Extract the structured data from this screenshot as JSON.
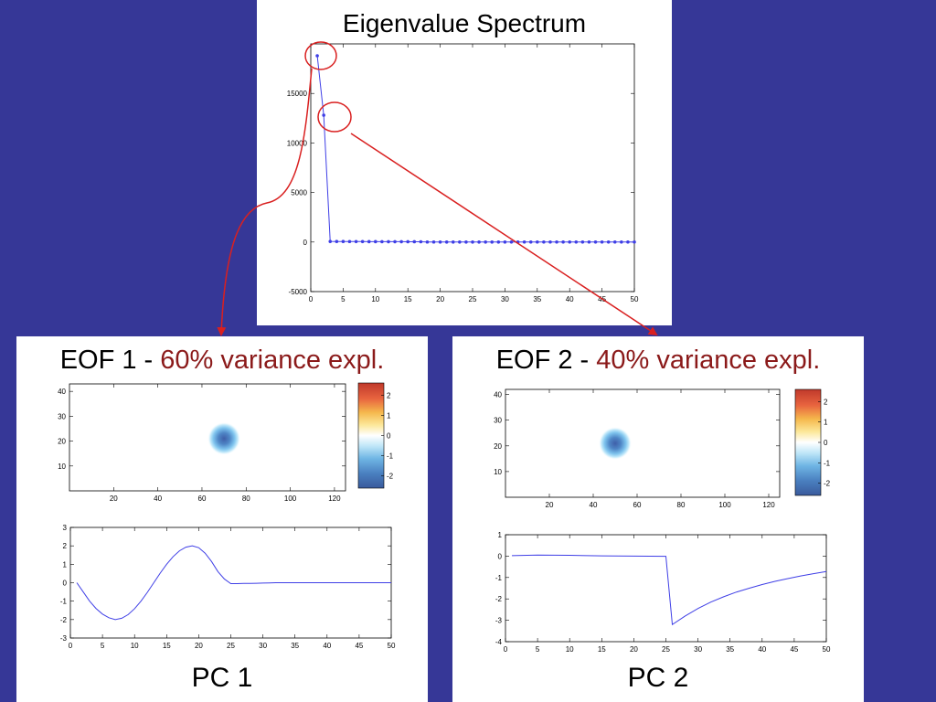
{
  "colors": {
    "background": "#363797",
    "panel": "#ffffff",
    "series_line": "#3f3fe6",
    "highlight_text": "#8b1a1a",
    "annotation": "#d92020"
  },
  "top": {
    "title": "Eigenvalue Spectrum"
  },
  "left": {
    "title_prefix": "EOF 1 - ",
    "title_highlight": "60% variance expl.",
    "caption": "PC 1"
  },
  "right": {
    "title_prefix": "EOF 2 - ",
    "title_highlight": "40% variance expl.",
    "caption": "PC 2"
  },
  "chart_data": [
    {
      "id": "eigen",
      "type": "line",
      "title": "Eigenvalue Spectrum",
      "marker": "dot",
      "xlim": [
        0,
        50
      ],
      "ylim": [
        -5000,
        20000
      ],
      "xticks": [
        0,
        5,
        10,
        15,
        20,
        25,
        30,
        35,
        40,
        45,
        50
      ],
      "yticks": [
        -5000,
        0,
        5000,
        10000,
        15000
      ],
      "x": [
        1,
        2,
        3,
        4,
        5,
        6,
        7,
        8,
        9,
        10,
        11,
        12,
        13,
        14,
        15,
        16,
        17,
        18,
        19,
        20,
        21,
        22,
        23,
        24,
        25,
        26,
        27,
        28,
        29,
        30,
        31,
        32,
        33,
        34,
        35,
        36,
        37,
        38,
        39,
        40,
        41,
        42,
        43,
        44,
        45,
        46,
        47,
        48,
        49,
        50
      ],
      "y": [
        18800,
        12800,
        60,
        55,
        52,
        50,
        48,
        46,
        44,
        42,
        40,
        38,
        36,
        34,
        32,
        30,
        28,
        5,
        4,
        3,
        3,
        3,
        2,
        2,
        2,
        2,
        2,
        2,
        2,
        2,
        1,
        1,
        1,
        1,
        1,
        1,
        1,
        1,
        1,
        1,
        1,
        1,
        1,
        1,
        1,
        1,
        1,
        1,
        1,
        1
      ]
    },
    {
      "id": "eof1",
      "type": "heatmap",
      "xlim": [
        0,
        125
      ],
      "ylim": [
        0,
        43
      ],
      "xticks": [
        20,
        40,
        60,
        80,
        100,
        120
      ],
      "yticks": [
        10,
        20,
        30,
        40
      ],
      "blob": {
        "x": 70,
        "y": 21,
        "min_value": -2.5
      },
      "colorbar": {
        "ticks": [
          2,
          1,
          0,
          -1,
          -2
        ],
        "range": [
          -2.6,
          2.6
        ]
      }
    },
    {
      "id": "eof2",
      "type": "heatmap",
      "xlim": [
        0,
        125
      ],
      "ylim": [
        0,
        42
      ],
      "xticks": [
        20,
        40,
        60,
        80,
        100,
        120
      ],
      "yticks": [
        10,
        20,
        30,
        40
      ],
      "blob": {
        "x": 50,
        "y": 21,
        "min_value": -2.5
      },
      "colorbar": {
        "ticks": [
          2,
          1,
          0,
          -1,
          -2
        ],
        "range": [
          -2.6,
          2.6
        ]
      }
    },
    {
      "id": "pc1",
      "type": "line",
      "xlim": [
        0,
        50
      ],
      "ylim": [
        -3,
        3
      ],
      "xticks": [
        0,
        5,
        10,
        15,
        20,
        25,
        30,
        35,
        40,
        45,
        50
      ],
      "yticks": [
        -3,
        -2,
        -1,
        0,
        1,
        2,
        3
      ],
      "x": [
        1,
        2,
        3,
        4,
        5,
        6,
        7,
        8,
        9,
        10,
        11,
        12,
        13,
        14,
        15,
        16,
        17,
        18,
        19,
        20,
        21,
        22,
        23,
        24,
        25,
        26,
        27,
        28,
        29,
        30,
        31,
        32,
        33,
        34,
        35,
        36,
        37,
        38,
        39,
        40,
        41,
        42,
        43,
        44,
        45,
        46,
        47,
        48,
        49,
        50
      ],
      "y": [
        0,
        -0.5,
        -1.0,
        -1.4,
        -1.7,
        -1.9,
        -2.0,
        -1.93,
        -1.73,
        -1.41,
        -1.0,
        -0.52,
        0,
        0.52,
        1.0,
        1.41,
        1.73,
        1.93,
        2.0,
        1.9,
        1.6,
        1.15,
        0.6,
        0.2,
        -0.05,
        -0.05,
        -0.04,
        -0.04,
        -0.03,
        -0.02,
        -0.01,
        0,
        0,
        0,
        0,
        0,
        0,
        0,
        0,
        0,
        0,
        0,
        0,
        0,
        0,
        0,
        0,
        0,
        0,
        0
      ]
    },
    {
      "id": "pc2",
      "type": "line",
      "xlim": [
        0,
        50
      ],
      "ylim": [
        -4,
        1
      ],
      "xticks": [
        0,
        5,
        10,
        15,
        20,
        25,
        30,
        35,
        40,
        45,
        50
      ],
      "yticks": [
        -4,
        -3,
        -2,
        -1,
        0,
        1
      ],
      "x": [
        1,
        5,
        10,
        15,
        20,
        25,
        26,
        28,
        30,
        32,
        34,
        36,
        38,
        40,
        42,
        44,
        46,
        48,
        50
      ],
      "y": [
        0.02,
        0.05,
        0.04,
        0.01,
        0.0,
        -0.01,
        -3.2,
        -2.8,
        -2.45,
        -2.15,
        -1.9,
        -1.68,
        -1.5,
        -1.33,
        -1.18,
        -1.05,
        -0.93,
        -0.82,
        -0.72
      ]
    }
  ]
}
